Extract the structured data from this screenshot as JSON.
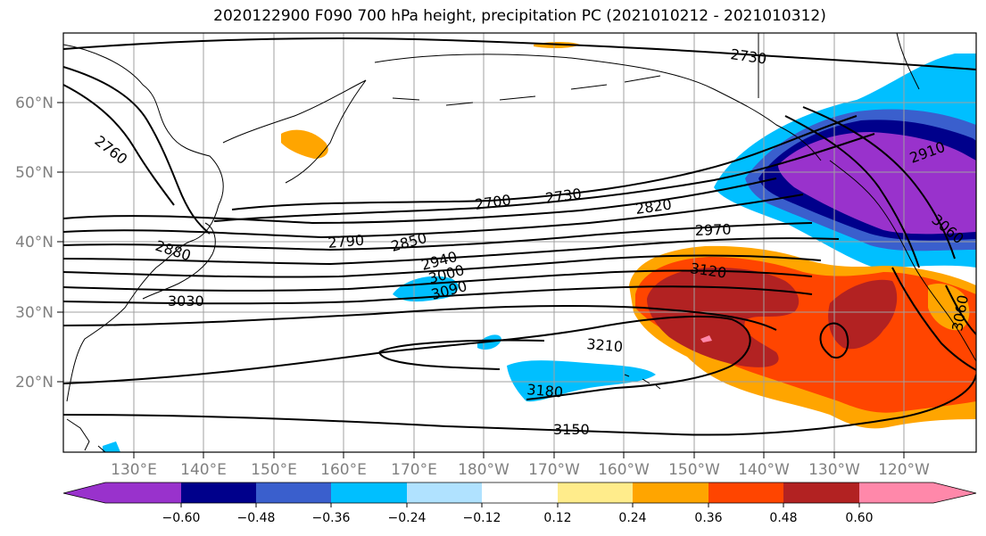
{
  "title": "2020122900 F090 700 hPa height, precipitation PC (2021010212 - 2021010312)",
  "latitude_labels": [
    "60°N",
    "50°N",
    "40°N",
    "30°N",
    "20°N"
  ],
  "longitude_labels": [
    "130°E",
    "140°E",
    "150°E",
    "160°E",
    "170°E",
    "180°W",
    "170°W",
    "160°W",
    "150°W",
    "140°W",
    "130°W",
    "120°W"
  ],
  "contour_labels": [
    "2730",
    "2760",
    "2700",
    "2730",
    "2820",
    "2790",
    "2850",
    "2970",
    "2880",
    "2940",
    "3000",
    "3090",
    "3120",
    "3030",
    "3210",
    "3180",
    "3150",
    "2910",
    "3060",
    "3060"
  ],
  "colorbar": {
    "colors": [
      "#9932cc",
      "#00008b",
      "#3a5fcd",
      "#00bfff",
      "#b0e2ff",
      "#ffffff",
      "#ffec8b",
      "#ffa500",
      "#ff4500",
      "#b22222",
      "#ff88aa"
    ],
    "tick_labels": [
      "−0.60",
      "−0.48",
      "−0.36",
      "−0.24",
      "−0.12",
      "0.12",
      "0.24",
      "0.36",
      "0.48",
      "0.60"
    ]
  }
}
